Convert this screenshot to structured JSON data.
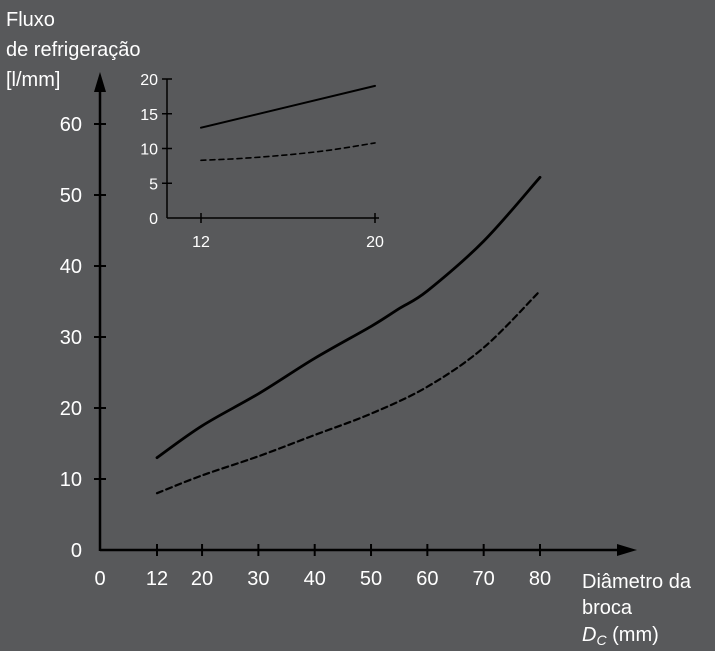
{
  "chart_data": [
    {
      "type": "line",
      "ylabel_lines": [
        "Fluxo",
        "de refrigeração",
        "[l/mm]"
      ],
      "xlabel_lines": [
        "Diâmetro da",
        "broca"
      ],
      "xlabel_symbol": "D",
      "xlabel_symbol_sub": "C",
      "xlabel_unit": " (mm)",
      "x_ticks": [
        0,
        12,
        20,
        30,
        40,
        50,
        60,
        70,
        80
      ],
      "y_ticks": [
        0,
        10,
        20,
        30,
        40,
        50,
        60
      ],
      "xlim": [
        0,
        80
      ],
      "ylim": [
        0,
        60
      ],
      "grid": false,
      "series": [
        {
          "style": "solid",
          "x": [
            12,
            20,
            30,
            40,
            50,
            55,
            60,
            70,
            80
          ],
          "y": [
            13,
            17.5,
            22,
            27,
            31.5,
            34,
            36.5,
            43.5,
            52.5
          ]
        },
        {
          "style": "dashed",
          "x": [
            12,
            20,
            30,
            40,
            50,
            60,
            70,
            80
          ],
          "y": [
            8,
            10.5,
            13.2,
            16.2,
            19.2,
            23,
            28.5,
            36.5
          ]
        }
      ]
    },
    {
      "type": "line",
      "x_ticks": [
        12,
        20
      ],
      "y_ticks": [
        0,
        5,
        10,
        15,
        20
      ],
      "xlim": [
        12,
        20
      ],
      "ylim": [
        0,
        20
      ],
      "grid": false,
      "series": [
        {
          "style": "solid",
          "x": [
            12,
            20
          ],
          "y": [
            13,
            19
          ]
        },
        {
          "style": "dashed",
          "x": [
            12,
            14,
            16,
            18,
            20
          ],
          "y": [
            8.3,
            8.6,
            9.1,
            9.8,
            10.8
          ]
        }
      ]
    }
  ],
  "colors": {
    "background": "#58595b",
    "axis": "#000000",
    "text": "#ffffff",
    "line": "#000000"
  }
}
